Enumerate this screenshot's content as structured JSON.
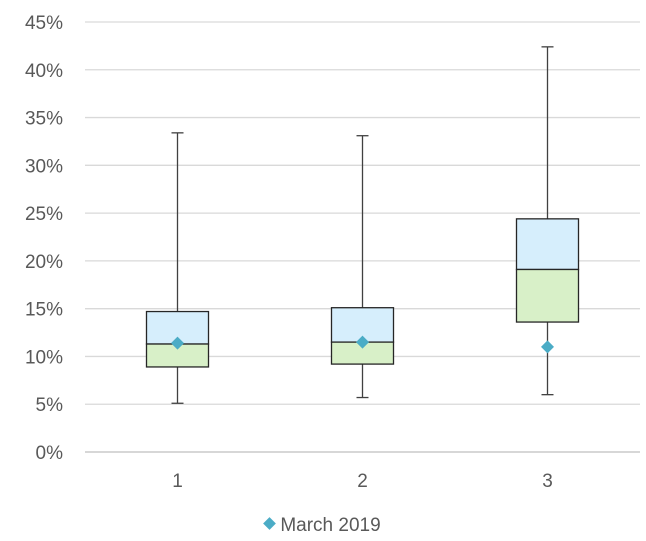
{
  "chart_data": {
    "type": "box",
    "title": "",
    "xlabel": "",
    "ylabel": "",
    "categories": [
      "1",
      "2",
      "3"
    ],
    "y_ticks": [
      "0%",
      "5%",
      "10%",
      "15%",
      "20%",
      "25%",
      "30%",
      "35%",
      "40%",
      "45%"
    ],
    "ylim": [
      0,
      45
    ],
    "grid": true,
    "boxes": [
      {
        "category": "1",
        "min": 5.1,
        "q1": 8.9,
        "median": 11.3,
        "q3": 14.7,
        "max": 33.4
      },
      {
        "category": "2",
        "min": 5.7,
        "q1": 9.2,
        "median": 11.5,
        "q3": 15.1,
        "max": 33.1
      },
      {
        "category": "3",
        "min": 6.0,
        "q1": 13.6,
        "median": 19.1,
        "q3": 24.4,
        "max": 42.4
      }
    ],
    "series": [
      {
        "name": "March 2019",
        "values": [
          11.4,
          11.5,
          11.0
        ]
      }
    ],
    "colors": {
      "upper_box": "#d6eefc",
      "lower_box": "#d8f0c8",
      "box_stroke": "#262626",
      "whisker": "#404040",
      "marker": "#4bacc6",
      "grid": "#d9d9d9",
      "axis": "#bfbfbf"
    },
    "legend": {
      "position": "bottom",
      "label": "March 2019"
    }
  }
}
